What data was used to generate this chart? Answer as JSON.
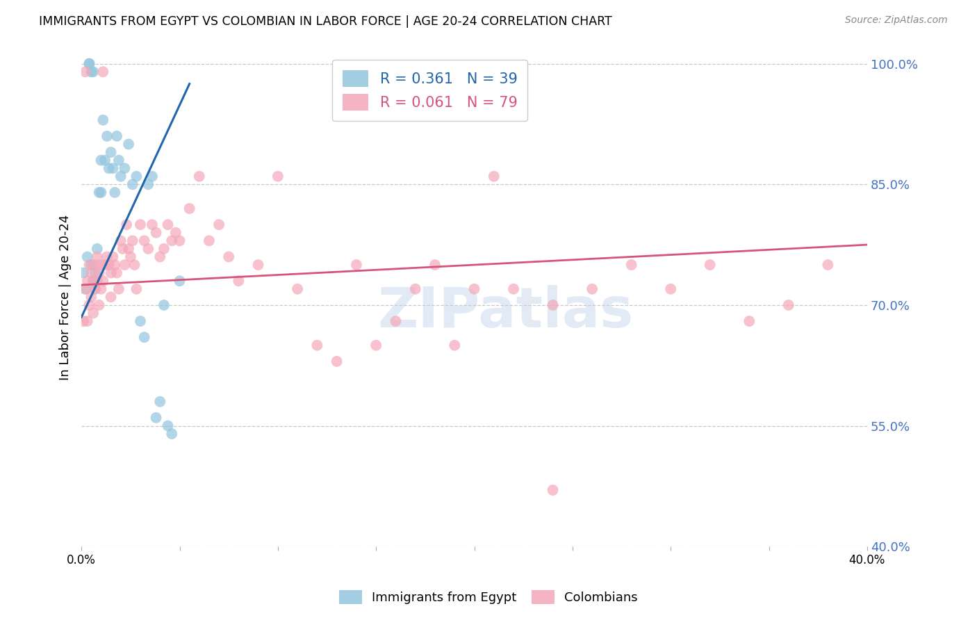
{
  "title": "IMMIGRANTS FROM EGYPT VS COLOMBIAN IN LABOR FORCE | AGE 20-24 CORRELATION CHART",
  "source": "Source: ZipAtlas.com",
  "ylabel": "In Labor Force | Age 20-24",
  "xlim": [
    0.0,
    0.4
  ],
  "ylim": [
    0.4,
    1.02
  ],
  "yticks": [
    0.4,
    0.55,
    0.7,
    0.85,
    1.0
  ],
  "ytick_labels": [
    "40.0%",
    "55.0%",
    "70.0%",
    "85.0%",
    "100.0%"
  ],
  "xticks": [
    0.0,
    0.05,
    0.1,
    0.15,
    0.2,
    0.25,
    0.3,
    0.35,
    0.4
  ],
  "xtick_labels": [
    "0.0%",
    "",
    "",
    "",
    "",
    "",
    "",
    "",
    "40.0%"
  ],
  "legend_egypt": "R = 0.361   N = 39",
  "legend_colombia": "R = 0.061   N = 79",
  "egypt_color": "#92c5de",
  "colombia_color": "#f4a7b9",
  "egypt_line_color": "#2166ac",
  "colombia_line_color": "#d6547a",
  "watermark": "ZIPatlas",
  "background_color": "#ffffff",
  "grid_color": "#c8c8c8",
  "right_axis_color": "#4472c4",
  "egypt_x": [
    0.001,
    0.002,
    0.003,
    0.004,
    0.004,
    0.005,
    0.005,
    0.006,
    0.006,
    0.007,
    0.007,
    0.008,
    0.009,
    0.01,
    0.01,
    0.011,
    0.012,
    0.013,
    0.014,
    0.015,
    0.016,
    0.017,
    0.018,
    0.019,
    0.02,
    0.022,
    0.024,
    0.026,
    0.028,
    0.03,
    0.032,
    0.034,
    0.036,
    0.038,
    0.04,
    0.042,
    0.044,
    0.046,
    0.05
  ],
  "egypt_y": [
    0.74,
    0.72,
    0.76,
    1.0,
    1.0,
    0.75,
    0.99,
    0.73,
    0.99,
    0.74,
    0.72,
    0.77,
    0.84,
    0.88,
    0.84,
    0.93,
    0.88,
    0.91,
    0.87,
    0.89,
    0.87,
    0.84,
    0.91,
    0.88,
    0.86,
    0.87,
    0.9,
    0.85,
    0.86,
    0.68,
    0.66,
    0.85,
    0.86,
    0.56,
    0.58,
    0.7,
    0.55,
    0.54,
    0.73
  ],
  "colombia_x": [
    0.001,
    0.002,
    0.002,
    0.003,
    0.003,
    0.004,
    0.004,
    0.005,
    0.005,
    0.006,
    0.006,
    0.007,
    0.007,
    0.008,
    0.008,
    0.009,
    0.009,
    0.01,
    0.01,
    0.011,
    0.011,
    0.012,
    0.013,
    0.014,
    0.015,
    0.015,
    0.016,
    0.017,
    0.018,
    0.019,
    0.02,
    0.021,
    0.022,
    0.023,
    0.024,
    0.025,
    0.026,
    0.027,
    0.028,
    0.03,
    0.032,
    0.034,
    0.036,
    0.038,
    0.04,
    0.042,
    0.044,
    0.046,
    0.048,
    0.05,
    0.055,
    0.06,
    0.065,
    0.07,
    0.075,
    0.08,
    0.09,
    0.1,
    0.11,
    0.12,
    0.13,
    0.14,
    0.15,
    0.16,
    0.17,
    0.18,
    0.19,
    0.2,
    0.21,
    0.22,
    0.24,
    0.26,
    0.28,
    0.3,
    0.32,
    0.34,
    0.36,
    0.38,
    0.24
  ],
  "colombia_y": [
    0.68,
    0.72,
    0.99,
    0.68,
    0.73,
    0.75,
    0.7,
    0.74,
    0.71,
    0.73,
    0.69,
    0.75,
    0.72,
    0.76,
    0.73,
    0.74,
    0.7,
    0.75,
    0.72,
    0.73,
    0.99,
    0.75,
    0.76,
    0.75,
    0.74,
    0.71,
    0.76,
    0.75,
    0.74,
    0.72,
    0.78,
    0.77,
    0.75,
    0.8,
    0.77,
    0.76,
    0.78,
    0.75,
    0.72,
    0.8,
    0.78,
    0.77,
    0.8,
    0.79,
    0.76,
    0.77,
    0.8,
    0.78,
    0.79,
    0.78,
    0.82,
    0.86,
    0.78,
    0.8,
    0.76,
    0.73,
    0.75,
    0.86,
    0.72,
    0.65,
    0.63,
    0.75,
    0.65,
    0.68,
    0.72,
    0.75,
    0.65,
    0.72,
    0.86,
    0.72,
    0.7,
    0.72,
    0.75,
    0.72,
    0.75,
    0.68,
    0.7,
    0.75,
    0.47
  ]
}
